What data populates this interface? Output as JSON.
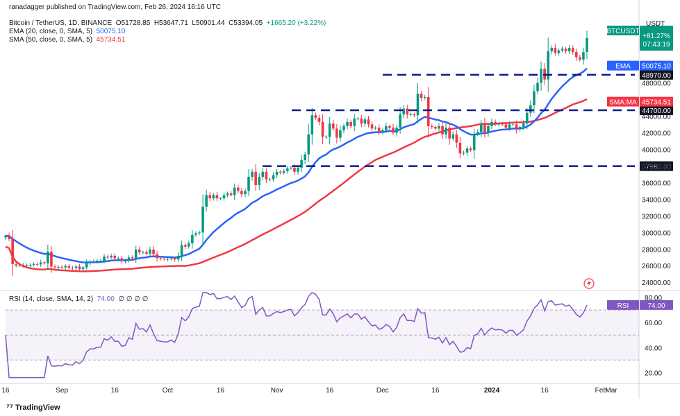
{
  "publisher": "ranadagger published on TradingView.com, Feb 26, 2024 16:16 UTC",
  "symbol_line": {
    "name": "Bitcoin / TetherUS, 1D, BINANCE",
    "o": "O51728.85",
    "h": "H53647.71",
    "l": "L50901.44",
    "c": "C53394.05",
    "chg": "+1665.20 (+3.22%)"
  },
  "ema_line": {
    "label": "EMA (20, close, 0, SMA, 5)",
    "value": "50075.10"
  },
  "sma_line": {
    "label": "SMA (50, close, 0, SMA, 5)",
    "value": "45734.51"
  },
  "rsi_line": {
    "label": "RSI (14, close, SMA, 14, 2)",
    "value": "74.00",
    "extras": "∅ ∅ ∅ ∅"
  },
  "currency": "USDT",
  "badges": {
    "btc_tag": "BTCUSDT",
    "btc_pct": "+81.27%",
    "btc_time": "07:43:19",
    "ema_tag": "EMA",
    "ema_val": "50075.10",
    "sma_tag": "SMA:MA",
    "sma_val": "45734.51",
    "rsi_tag": "RSI",
    "rsi_val": "74.00"
  },
  "levels": [
    {
      "label": "48970.00",
      "value": 48970
    },
    {
      "label": "44700.00",
      "value": 44700
    },
    {
      "label": "37980.00",
      "value": 37980
    }
  ],
  "brand": "TradingView",
  "colors": {
    "up": "#089981",
    "down": "#f23645",
    "ema": "#2962ff",
    "sma": "#f23645",
    "rsi": "#7e57c2",
    "level": "#0b1a8c"
  },
  "chart_data": {
    "type": "candlestick",
    "price_axis": {
      "ticks": [
        "48000.00",
        "44000.00",
        "42000.00",
        "40000.00",
        "38000.00",
        "36000.00",
        "34000.00",
        "32000.00",
        "30000.00",
        "28000.00",
        "26000.00",
        "24000.00"
      ],
      "range": [
        23100,
        56300
      ]
    },
    "rsi_axis": {
      "ticks": [
        "80.00",
        "60.00",
        "40.00",
        "20.00"
      ],
      "range": [
        13,
        85
      ],
      "bands": [
        70,
        50,
        30
      ]
    },
    "x_ticks": [
      "16",
      "Sep",
      "16",
      "Oct",
      "16",
      "Nov",
      "16",
      "Dec",
      "16",
      "2024",
      "16",
      "Feb",
      "Mar"
    ],
    "close": [
      29600,
      29200,
      26200,
      26050,
      26100,
      26000,
      26050,
      26100,
      26200,
      26150,
      26400,
      26300,
      27700,
      25900,
      25800,
      25850,
      25800,
      25950,
      25750,
      25700,
      25900,
      25600,
      25800,
      26300,
      26500,
      26500,
      26600,
      26600,
      27100,
      27000,
      27200,
      26900,
      26900,
      26550,
      26600,
      27000,
      26900,
      27950,
      27600,
      27650,
      27450,
      27950,
      27400,
      26900,
      26850,
      26800,
      26800,
      26900,
      26750,
      27200,
      28500,
      28300,
      28700,
      29700,
      29900,
      30000,
      33100,
      34500,
      34100,
      34500,
      34100,
      34100,
      34500,
      34700,
      34500,
      35400,
      35000,
      34600,
      35000,
      36700,
      37300,
      35700,
      36700,
      37300,
      36400,
      36400,
      36900,
      37300,
      37200,
      37400,
      37700,
      37800,
      37300,
      37800,
      38700,
      39400,
      41800,
      44100,
      43800,
      43300,
      41500,
      41500,
      43100,
      42500,
      41400,
      42300,
      42800,
      43300,
      42800,
      43700,
      43700,
      43100,
      43600,
      43000,
      42500,
      42600,
      42100,
      42300,
      42800,
      42600,
      42000,
      42600,
      44200,
      44900,
      44200,
      44200,
      44100,
      46700,
      46200,
      46300,
      42800,
      42700,
      42500,
      42800,
      41800,
      42600,
      41300,
      41800,
      40800,
      39500,
      39600,
      40100,
      39900,
      41800,
      42100,
      43100,
      42000,
      42800,
      43300,
      43000,
      43100,
      43000,
      42600,
      43000,
      43000,
      42400,
      42700,
      43100,
      44400,
      45300,
      47000,
      48000,
      49700,
      48400,
      51800,
      52200,
      51600,
      51900,
      52100,
      51800,
      52200,
      51700,
      51100,
      50800,
      51700,
      53394
    ]
  }
}
